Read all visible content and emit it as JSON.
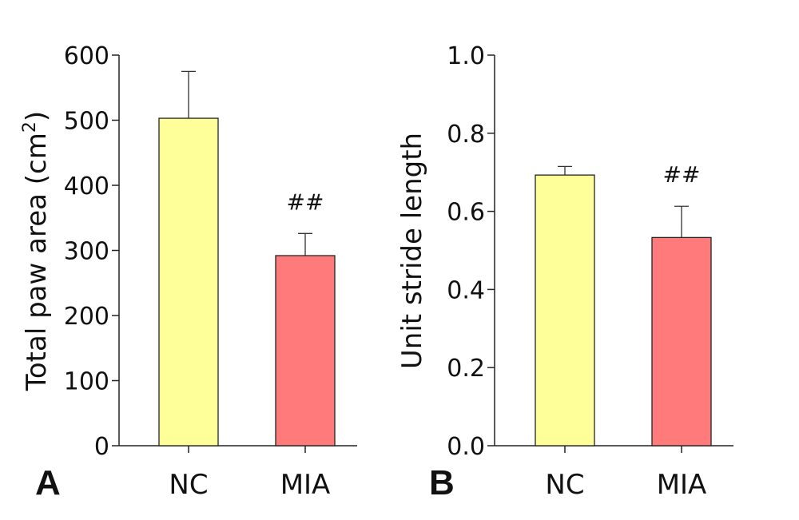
{
  "chart_data": [
    {
      "type": "bar",
      "panel": "A",
      "categories": [
        "NC",
        "MIA"
      ],
      "values": [
        503,
        292
      ],
      "errors": [
        72,
        34
      ],
      "annotations": [
        "",
        "##"
      ],
      "colors": [
        "#ffff99",
        "#ff7b7b"
      ],
      "ylabel_main": "Total paw area (cm",
      "ylabel_sup": "2",
      "ylabel_end": ")",
      "ylim": [
        0,
        600
      ],
      "yticks": [
        0,
        100,
        200,
        300,
        400,
        500,
        600
      ],
      "ytick_labels": [
        "0",
        "100",
        "200",
        "300",
        "400",
        "500",
        "600"
      ],
      "grid": false,
      "legend": "none"
    },
    {
      "type": "bar",
      "panel": "B",
      "categories": [
        "NC",
        "MIA"
      ],
      "values": [
        0.693,
        0.533
      ],
      "errors": [
        0.022,
        0.08
      ],
      "annotations": [
        "",
        "##"
      ],
      "colors": [
        "#ffff99",
        "#ff7b7b"
      ],
      "ylabel": "Unit stride length",
      "ylim": [
        0,
        1.0
      ],
      "yticks": [
        0,
        0.2,
        0.4,
        0.6,
        0.8,
        1.0
      ],
      "ytick_labels": [
        "0.0",
        "0.2",
        "0.4",
        "0.6",
        "0.8",
        "1.0"
      ],
      "grid": false,
      "legend": "none"
    }
  ]
}
